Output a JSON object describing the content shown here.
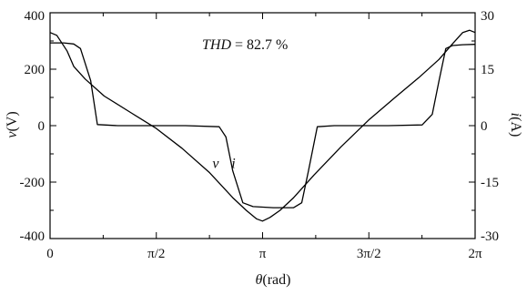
{
  "chart_data": {
    "type": "line",
    "annotation": {
      "prefix": "THD",
      "suffix": " = 82.7 %"
    },
    "xlabel": {
      "symbol": "θ",
      "unit": "(rad)"
    },
    "ylabel_left": {
      "symbol": "v",
      "unit": "(V)"
    },
    "ylabel_right": {
      "symbol": "i",
      "unit": "(A)"
    },
    "xlim": [
      0,
      6.2832
    ],
    "ylim_left": [
      -400,
      400
    ],
    "ylim_right": [
      -30,
      30
    ],
    "x_ticks": [
      {
        "value": 0,
        "label": "0"
      },
      {
        "value": 1.5708,
        "label": "π/2"
      },
      {
        "value": 3.1416,
        "label": "π"
      },
      {
        "value": 4.7124,
        "label": "3π/2"
      },
      {
        "value": 6.2832,
        "label": "2π"
      }
    ],
    "y_left_ticks": [
      {
        "value": 400,
        "label": "400"
      },
      {
        "value": 200,
        "label": "200"
      },
      {
        "value": 0,
        "label": "0"
      },
      {
        "value": -200,
        "label": "-200"
      },
      {
        "value": -400,
        "label": "-400"
      }
    ],
    "y_right_ticks": [
      {
        "value": 30,
        "label": "30"
      },
      {
        "value": 15,
        "label": "15"
      },
      {
        "value": 0,
        "label": "0"
      },
      {
        "value": -15,
        "label": "-15"
      },
      {
        "value": -30,
        "label": "-30"
      }
    ],
    "series": [
      {
        "name": "v",
        "axis": "left",
        "x": [
          0,
          0.1,
          0.25,
          0.35,
          0.52,
          0.8,
          1.2,
          1.57,
          1.95,
          2.35,
          2.7,
          2.9,
          3.05,
          3.14,
          3.25,
          3.4,
          3.6,
          3.9,
          4.3,
          4.71,
          5.1,
          5.45,
          5.75,
          5.95,
          6.1,
          6.2,
          6.2832
        ],
        "values": [
          330,
          320,
          265,
          210,
          165,
          105,
          45,
          -10,
          -80,
          -165,
          -255,
          -300,
          -330,
          -338,
          -325,
          -300,
          -255,
          -175,
          -75,
          20,
          100,
          170,
          235,
          290,
          330,
          338,
          330
        ]
      },
      {
        "name": "i",
        "axis": "right",
        "x": [
          0,
          0.2,
          0.35,
          0.45,
          0.6,
          0.7,
          1.0,
          2.0,
          2.5,
          2.6,
          2.7,
          2.85,
          3.0,
          3.3,
          3.6,
          3.72,
          3.82,
          3.95,
          4.2,
          4.5,
          5.0,
          5.5,
          5.65,
          5.75,
          5.85,
          5.95,
          6.1,
          6.2832
        ],
        "values": [
          22,
          22,
          21.7,
          20.5,
          12,
          0.3,
          0,
          0,
          -0.3,
          -3,
          -12,
          -20.5,
          -21.5,
          -21.8,
          -21.8,
          -20.5,
          -12,
          -0.3,
          0,
          0,
          0,
          0.2,
          3,
          12,
          20.5,
          21.3,
          21.5,
          21.6
        ]
      }
    ],
    "series_labels": [
      {
        "name": "v",
        "x": 2.4,
        "y": -150,
        "axis": "left"
      },
      {
        "name": "i",
        "x": 2.68,
        "y": -150,
        "axis": "left"
      }
    ],
    "grid": false
  }
}
